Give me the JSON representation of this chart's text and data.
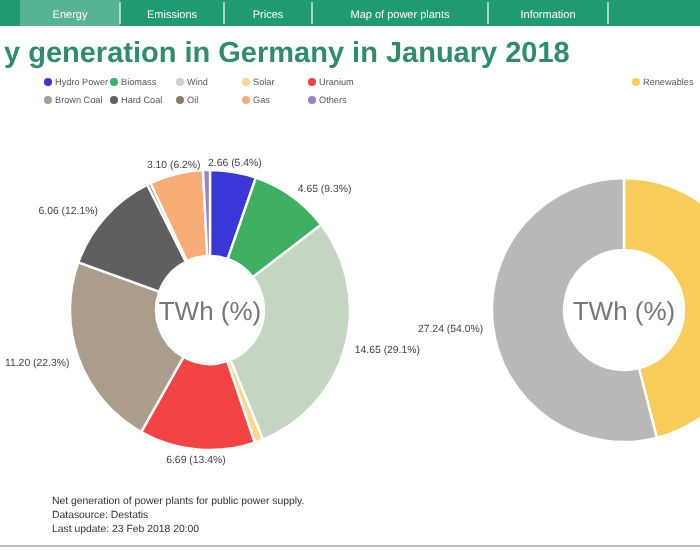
{
  "chart_data": [
    {
      "type": "other",
      "annotations": [
        "Energy",
        "Emissions",
        "Prices",
        "Map of power plants",
        "Information"
      ],
      "color": "#1f9a72"
    },
    {
      "type": "donut",
      "title": "y generation in Germany in January 2018",
      "legend": "top",
      "categories": [
        "Hydro Power",
        "Biomass",
        "Wind",
        "Solar",
        "Uranium",
        "Brown Coal",
        "Hard Coal",
        "Oil",
        "Gas",
        "Others"
      ],
      "values": [
        2.66,
        4.65,
        14.65,
        0.5,
        6.69,
        11.2,
        6.06,
        0.2,
        3.1,
        0.4
      ],
      "colors": [
        "#3a36d8",
        "#3fb062",
        "#c4d6c2",
        "#f6d890",
        "#f24444",
        "#ab9d8b",
        "#5f5f5f",
        "#8c7d62",
        "#f6ac74",
        "#9a82c6"
      ],
      "value_labels": [
        "2.66 (5.4%)",
        "4.65 (9.3%)",
        "14.65 (29.1%)",
        null,
        "6.69 (13.4%)",
        "11.20 (22.3%)",
        "6.06 (12.1%)",
        null,
        "3.10 (6.2%)",
        null
      ],
      "annotations": [
        "TWh (%)",
        "Net generation of power plants for public power supply.",
        "Datasource: Destatis",
        "Last update: 23 Feb 2018 20:00"
      ]
    },
    {
      "type": "donut",
      "legend": "top",
      "categories": [
        "Renewables",
        null
      ],
      "values": [
        23.2,
        27.24
      ],
      "colors": [
        "#f8cc58",
        "#b8b8b8"
      ],
      "value_labels": [
        null,
        "27.24 (54.0%)"
      ],
      "annotations": [
        "TWh (%)"
      ]
    }
  ]
}
